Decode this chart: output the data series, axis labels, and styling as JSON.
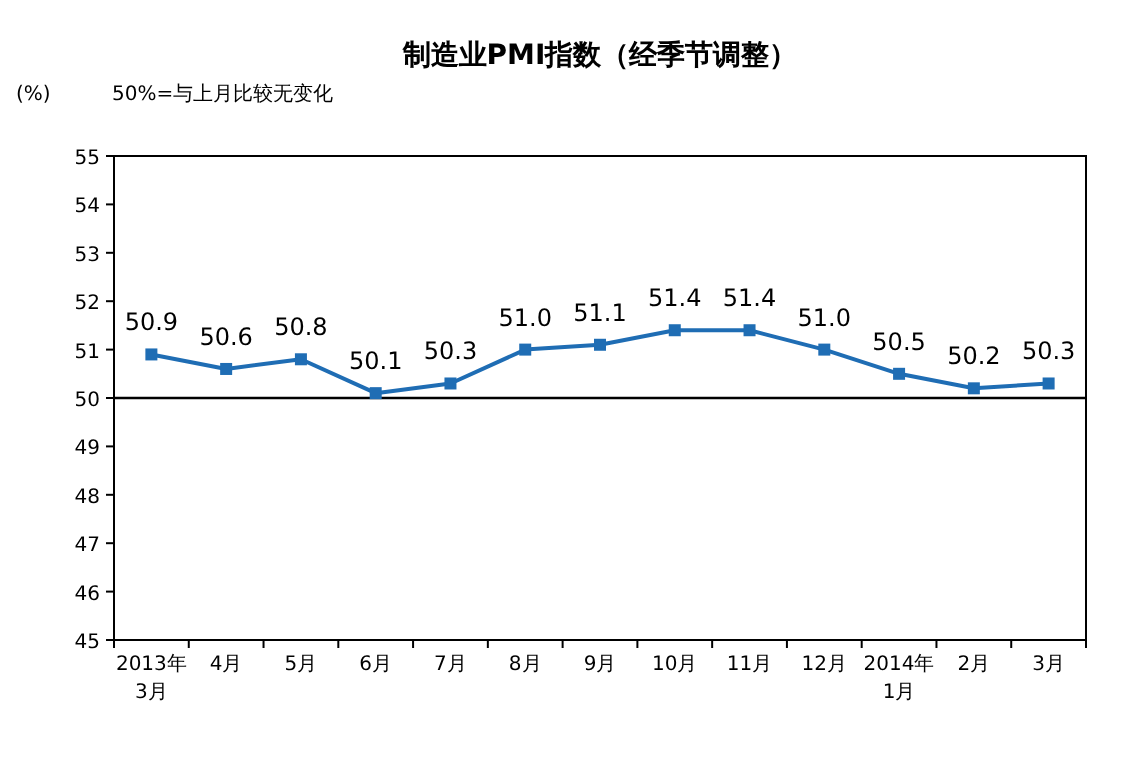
{
  "chart_data": {
    "type": "line",
    "title": "制造业PMI指数（经季节调整）",
    "ylabel": "(%)",
    "annotations": [
      "50%=与上月比较无变化"
    ],
    "categories": [
      "2013年\n3月",
      "4月",
      "5月",
      "6月",
      "7月",
      "8月",
      "9月",
      "10月",
      "11月",
      "12月",
      "2014年\n1月",
      "2月",
      "3月"
    ],
    "values": [
      50.9,
      50.6,
      50.8,
      50.1,
      50.3,
      51.0,
      51.1,
      51.4,
      51.4,
      51.0,
      50.5,
      50.2,
      50.3
    ],
    "value_labels": [
      "50.9",
      "50.6",
      "50.8",
      "50.1",
      "50.3",
      "51.0",
      "51.1",
      "51.4",
      "51.4",
      "51.0",
      "50.5",
      "50.2",
      "50.3"
    ],
    "color": "#1f6db4",
    "marker": "square",
    "line_style": "solid",
    "ylim": [
      45,
      55
    ],
    "yticks": [
      45,
      46,
      47,
      48,
      49,
      50,
      51,
      52,
      53,
      54,
      55
    ],
    "ref_lines": [
      {
        "axis": "y",
        "value": 50,
        "color": "#000000"
      }
    ]
  }
}
